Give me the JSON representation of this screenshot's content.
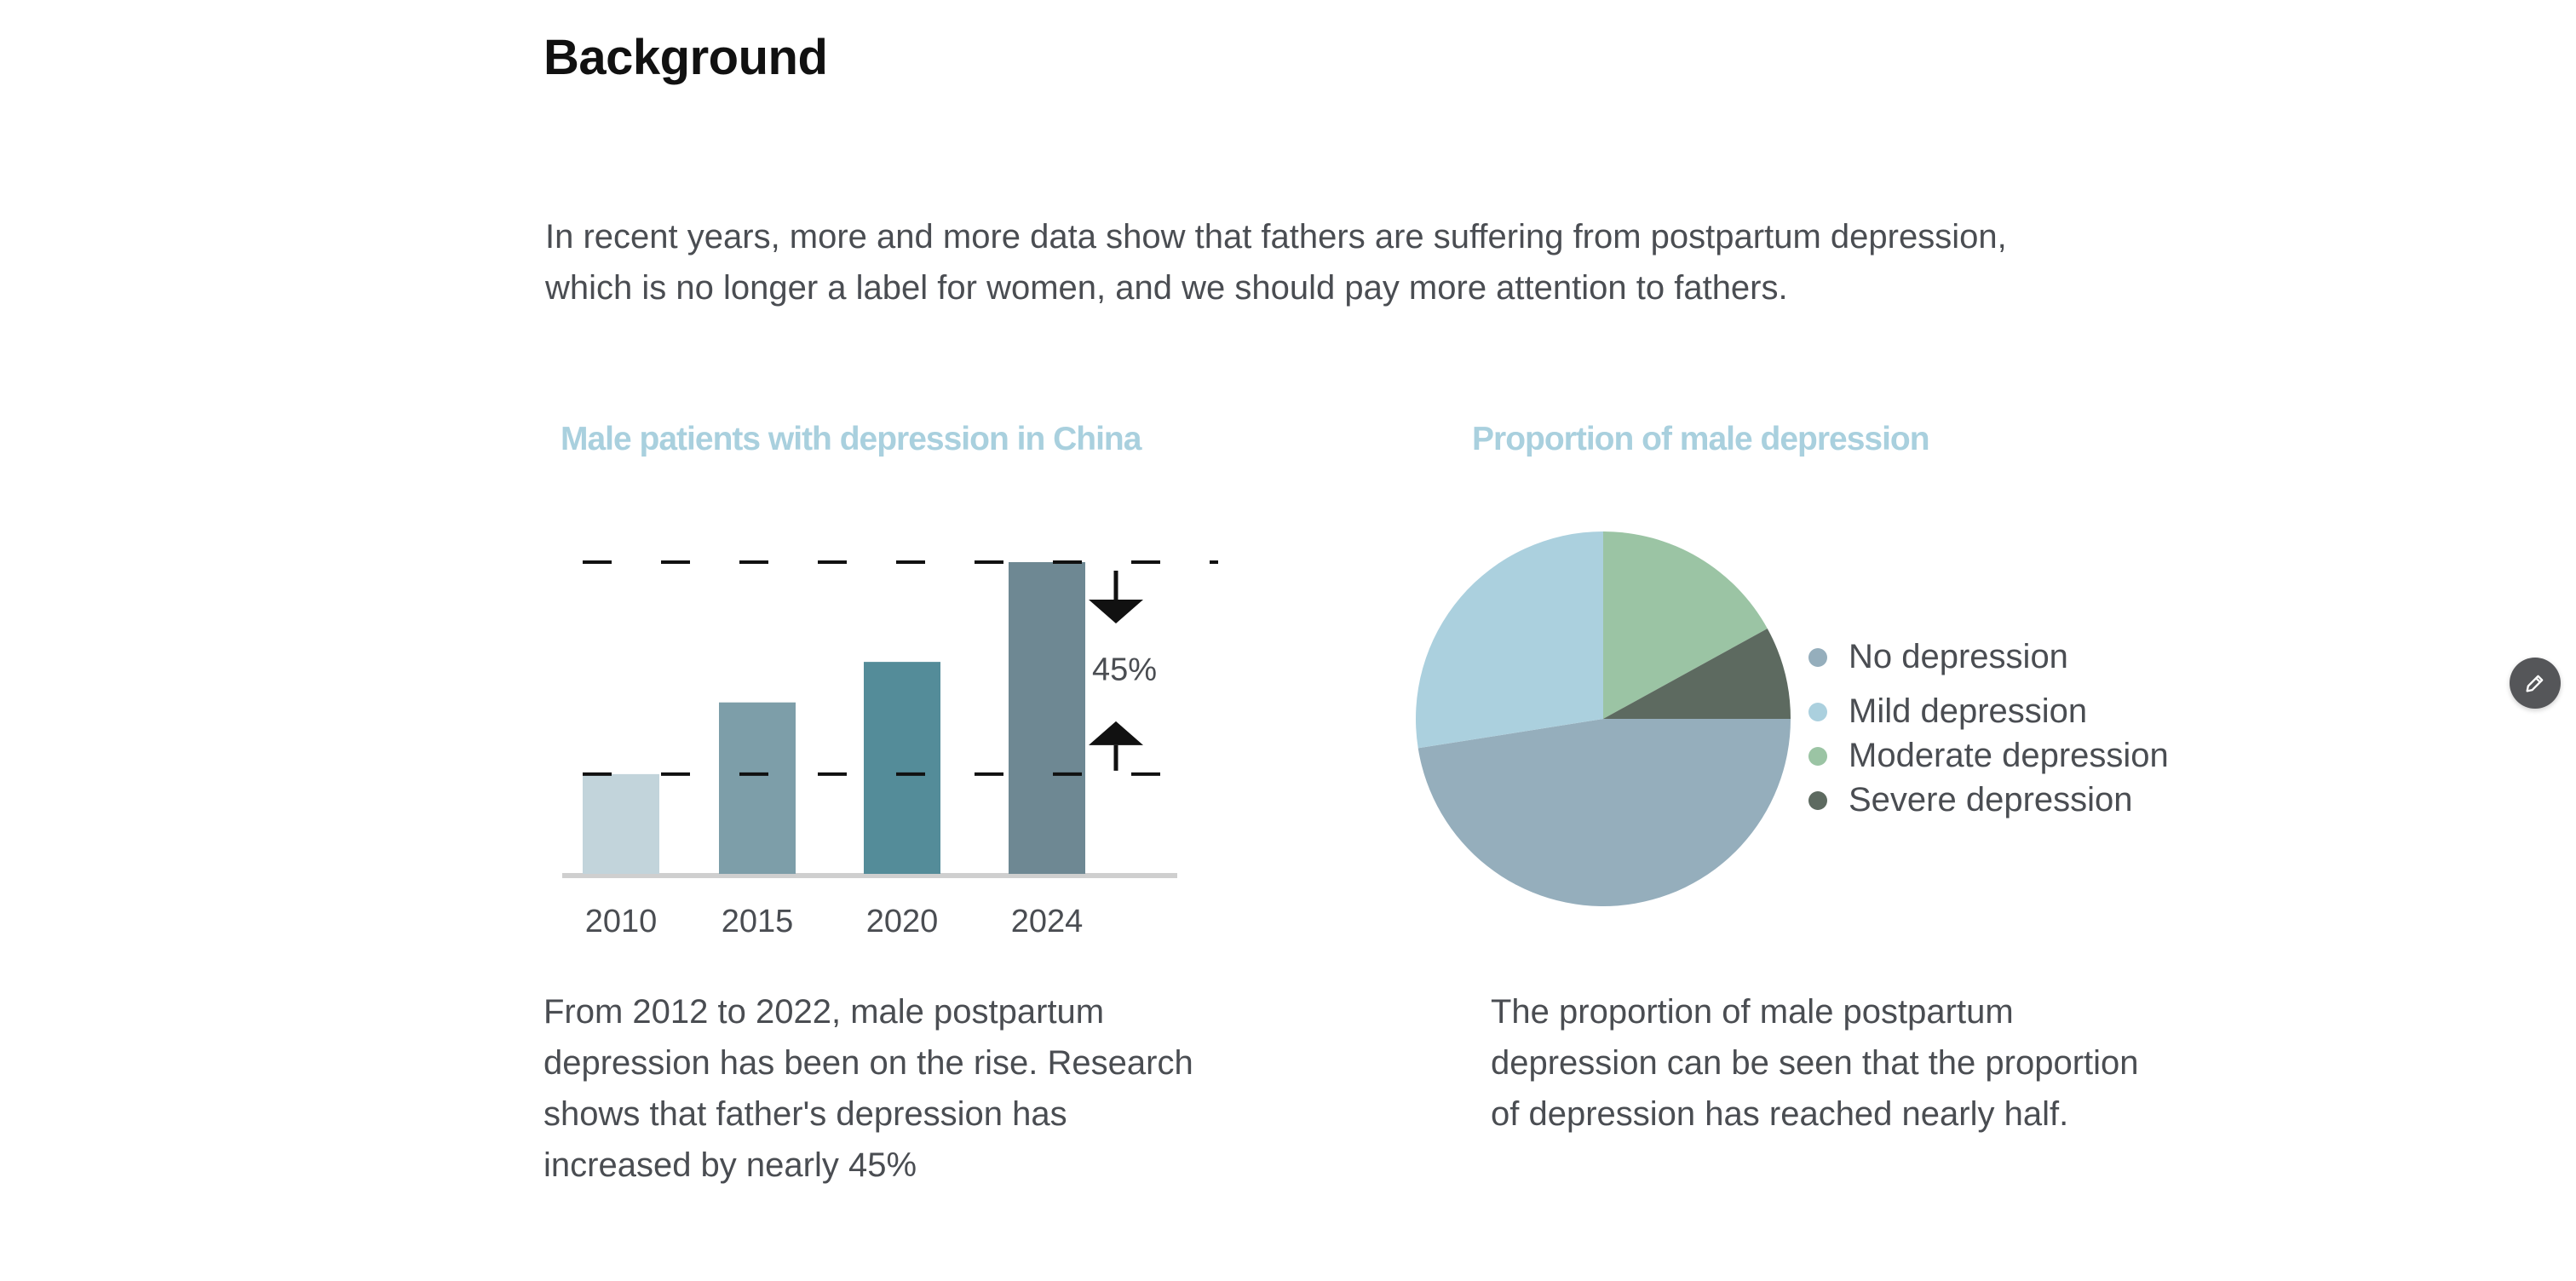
{
  "page": {
    "heading": "Background",
    "intro_lines": [
      "In recent years, more and more data show that fathers are suffering from postpartum depression,",
      "which is no longer a label for women, and we should pay more attention to fathers."
    ]
  },
  "bar_section": {
    "caption_lines": [
      "From 2012 to 2022, male postpartum",
      "depression has been on the rise. Research",
      "shows that father's depression has",
      "increased by nearly 45%"
    ]
  },
  "pie_section": {
    "caption_lines": [
      "The proportion of male postpartum",
      "depression can be seen that the proportion",
      "of depression has reached nearly half."
    ]
  },
  "edit_button": {
    "icon": "pencil-icon"
  },
  "chart_data": [
    {
      "type": "bar",
      "title": "Male patients with depression in China",
      "categories": [
        "2010",
        "2015",
        "2020",
        "2024"
      ],
      "values": [
        32,
        55,
        68,
        100
      ],
      "colors": [
        "#c2d4db",
        "#7d9ea9",
        "#548c99",
        "#6e8893"
      ],
      "ylim": [
        0,
        100
      ],
      "reference_lines": [
        100,
        32
      ],
      "annotation": "45%",
      "grid": false
    },
    {
      "type": "pie",
      "title": "Proportion  of male depression",
      "labels": [
        "No depression",
        "Mild depression",
        "Moderate depression",
        "Severe depression"
      ],
      "values": [
        47.5,
        27.5,
        17.0,
        8.0
      ],
      "colors": [
        "#95aebc",
        "#abd0de",
        "#9bc4a4",
        "#5d6a60"
      ],
      "legend_position": "right"
    }
  ]
}
